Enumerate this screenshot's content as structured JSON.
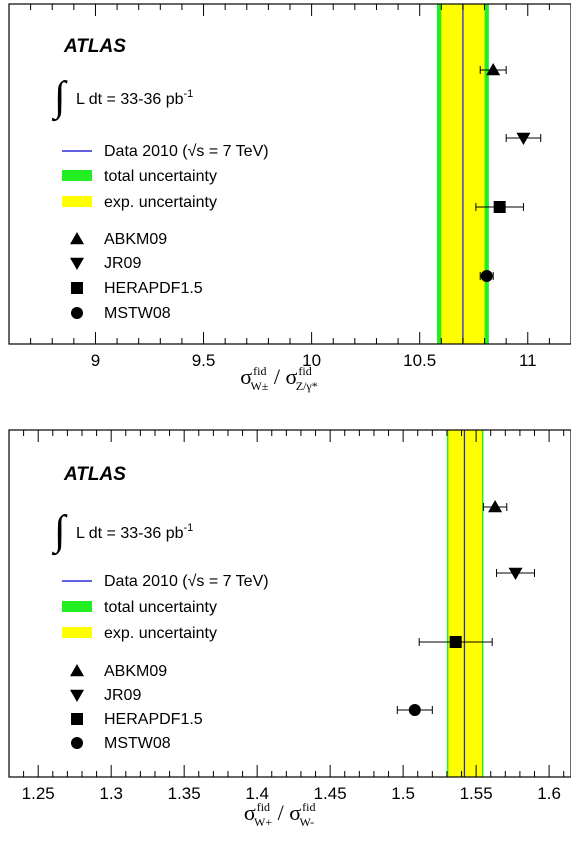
{
  "chart_data": [
    {
      "type": "scatter",
      "experiment_label": "ATLAS",
      "lumi": {
        "prefix": "L dt = 33-36 pb",
        "superscript": "-1"
      },
      "xlim": [
        8.6,
        11.2
      ],
      "xticks": [
        9,
        9.5,
        10,
        10.5,
        11
      ],
      "xtick_labels": [
        "9",
        "9.5",
        "10",
        "10.5",
        "11"
      ],
      "xlabel": {
        "num": "σ",
        "num_sup": "fid",
        "num_sub": "W±",
        "sep": "/",
        "den": "σ",
        "den_sup": "fid",
        "den_sub": "Z/γ*"
      },
      "data": {
        "label": "Data 2010 (√s = 7 TeV)",
        "value": 10.7,
        "total_band": [
          10.58,
          10.82
        ],
        "exp_band": [
          10.6,
          10.8
        ]
      },
      "legend": {
        "total_label": "total uncertainty",
        "exp_label": "exp. uncertainty"
      },
      "series": [
        {
          "name": "ABKM09",
          "marker": "triangle-up",
          "x": 10.84,
          "xerr": 0.06
        },
        {
          "name": "JR09",
          "marker": "triangle-down",
          "x": 10.98,
          "xerr": 0.08
        },
        {
          "name": "HERAPDF1.5",
          "marker": "square",
          "x": 10.87,
          "xerr": 0.11
        },
        {
          "name": "MSTW08",
          "marker": "circle",
          "x": 10.81,
          "xerr": 0.03
        }
      ]
    },
    {
      "type": "scatter",
      "experiment_label": "ATLAS",
      "lumi": {
        "prefix": "L dt = 33-36 pb",
        "superscript": "-1"
      },
      "xlim": [
        1.23,
        1.615
      ],
      "xticks": [
        1.25,
        1.3,
        1.35,
        1.4,
        1.45,
        1.5,
        1.55,
        1.6
      ],
      "xtick_labels": [
        "1.25",
        "1.3",
        "1.35",
        "1.4",
        "1.45",
        "1.5",
        "1.55",
        "1.6"
      ],
      "xlabel": {
        "num": "σ",
        "num_sup": "fid",
        "num_sub": "W+",
        "sep": "/",
        "den": "σ",
        "den_sup": "fid",
        "den_sub": "W-"
      },
      "data": {
        "label": "Data 2010 (√s = 7 TeV)",
        "value": 1.542,
        "total_band": [
          1.53,
          1.555
        ],
        "exp_band": [
          1.531,
          1.554
        ]
      },
      "legend": {
        "total_label": "total uncertainty",
        "exp_label": "exp. uncertainty"
      },
      "series": [
        {
          "name": "ABKM09",
          "marker": "triangle-up",
          "x": 1.563,
          "xerr": 0.008
        },
        {
          "name": "JR09",
          "marker": "triangle-down",
          "x": 1.577,
          "xerr": 0.013
        },
        {
          "name": "HERAPDF1.5",
          "marker": "square",
          "x": 1.536,
          "xerr": 0.025
        },
        {
          "name": "MSTW08",
          "marker": "circle",
          "x": 1.508,
          "xerr": 0.012
        }
      ]
    }
  ]
}
